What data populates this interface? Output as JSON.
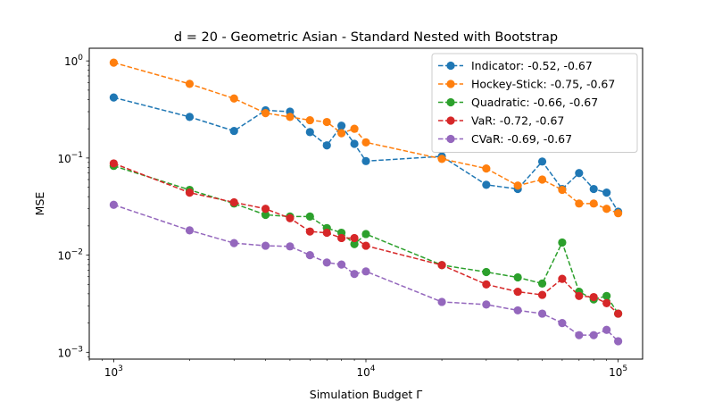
{
  "chart_data": {
    "type": "line",
    "title": "d = 20 - Geometric Asian - Standard Nested with Bootstrap",
    "xlabel": "Simulation Budget Γ",
    "ylabel": "MSE",
    "xscale": "log",
    "yscale": "log",
    "xlim": [
      800,
      125000
    ],
    "ylim": [
      0.00085,
      1.35
    ],
    "xticks": [
      {
        "value": 1000,
        "base": "10",
        "exp": "3"
      },
      {
        "value": 10000,
        "base": "10",
        "exp": "4"
      },
      {
        "value": 100000,
        "base": "10",
        "exp": "5"
      }
    ],
    "yticks": [
      {
        "value": 0.001,
        "base": "10",
        "exp": "−3"
      },
      {
        "value": 0.01,
        "base": "10",
        "exp": "−2"
      },
      {
        "value": 0.1,
        "base": "10",
        "exp": "−1"
      },
      {
        "value": 1,
        "base": "10",
        "exp": "0"
      }
    ],
    "grid": false,
    "legend_position": "top-right",
    "x": [
      1000,
      2000,
      3000,
      4000,
      5000,
      6000,
      7000,
      8000,
      9000,
      10000,
      20000,
      30000,
      40000,
      50000,
      60000,
      70000,
      80000,
      90000,
      100000
    ],
    "series": [
      {
        "name": "Indicator: -0.52, -0.67",
        "color": "#1f77b4",
        "values": [
          0.42,
          0.265,
          0.19,
          0.31,
          0.3,
          0.185,
          0.135,
          0.215,
          0.14,
          0.093,
          0.104,
          0.053,
          0.048,
          0.092,
          0.048,
          0.07,
          0.048,
          0.044,
          0.028
        ]
      },
      {
        "name": "Hockey-Stick: -0.75, -0.67",
        "color": "#ff7f0e",
        "values": [
          0.96,
          0.58,
          0.41,
          0.29,
          0.265,
          0.245,
          0.235,
          0.18,
          0.2,
          0.145,
          0.098,
          0.078,
          0.052,
          0.06,
          0.047,
          0.034,
          0.034,
          0.03,
          0.027
        ]
      },
      {
        "name": "Quadratic: -0.66, -0.67",
        "color": "#2ca02c",
        "values": [
          0.083,
          0.047,
          0.034,
          0.026,
          0.025,
          0.025,
          0.019,
          0.017,
          0.013,
          0.0165,
          0.0079,
          0.0067,
          0.0059,
          0.0051,
          0.0135,
          0.0042,
          0.0035,
          0.0038,
          0.0025
        ]
      },
      {
        "name": "VaR: -0.72, -0.67",
        "color": "#d62728",
        "values": [
          0.088,
          0.044,
          0.035,
          0.03,
          0.024,
          0.0175,
          0.017,
          0.015,
          0.015,
          0.0125,
          0.0079,
          0.005,
          0.0042,
          0.0039,
          0.0057,
          0.0038,
          0.0037,
          0.0032,
          0.0025
        ]
      },
      {
        "name": "CVaR: -0.69, -0.67",
        "color": "#9467bd",
        "values": [
          0.033,
          0.018,
          0.0133,
          0.0125,
          0.0123,
          0.01,
          0.0084,
          0.008,
          0.0064,
          0.0068,
          0.0033,
          0.0031,
          0.0027,
          0.0025,
          0.002,
          0.0015,
          0.0015,
          0.0017,
          0.0013
        ]
      }
    ]
  }
}
